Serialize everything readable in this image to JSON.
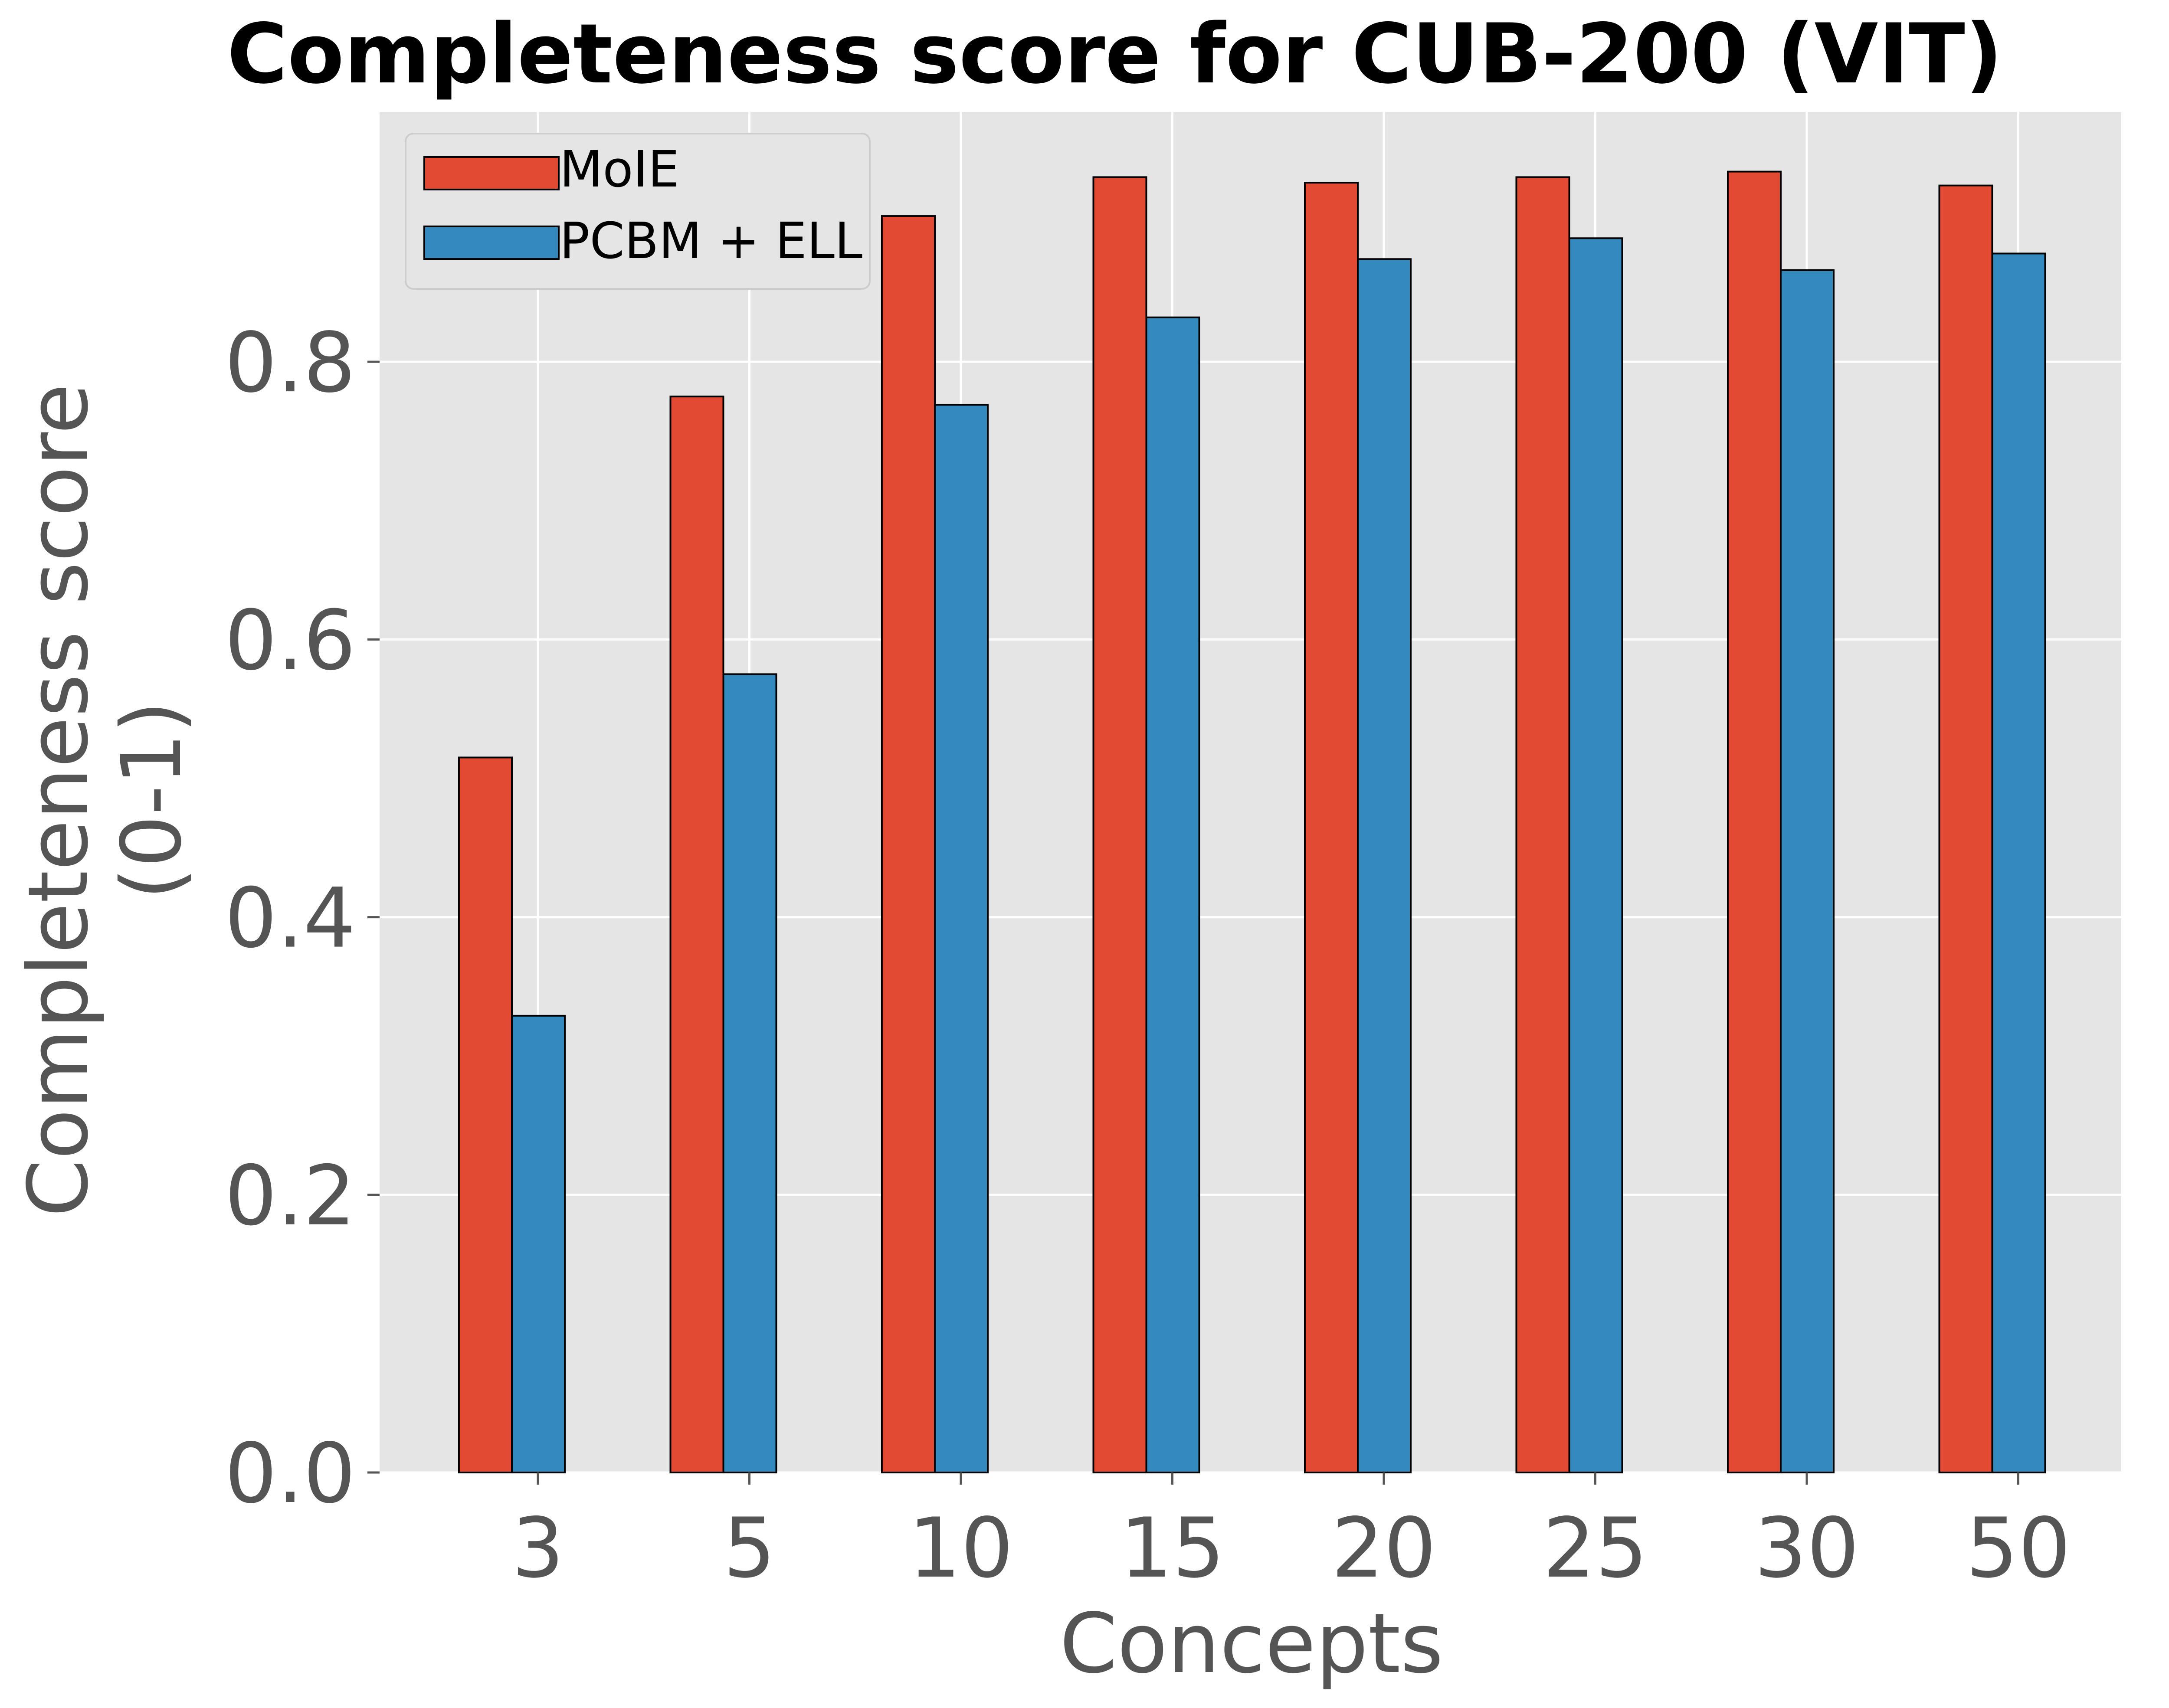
{
  "chart_data": {
    "type": "bar",
    "title": "Completeness score for CUB-200 (VIT)",
    "xlabel": "Concepts",
    "ylabel_line1": "Completeness score",
    "ylabel_line2": "(0-1)",
    "categories": [
      "3",
      "5",
      "10",
      "15",
      "20",
      "25",
      "30",
      "50"
    ],
    "series": [
      {
        "name": "MoIE",
        "values": [
          0.515,
          0.775,
          0.905,
          0.933,
          0.929,
          0.933,
          0.937,
          0.927
        ],
        "color": "#E24A33"
      },
      {
        "name": "PCBM + ELL",
        "values": [
          0.329,
          0.575,
          0.769,
          0.832,
          0.874,
          0.889,
          0.866,
          0.878
        ],
        "color": "#348ABD"
      }
    ],
    "ylim": [
      0,
      0.98
    ],
    "yticks": [
      "0.0",
      "0.2",
      "0.4",
      "0.6",
      "0.8"
    ],
    "ytick_values": [
      0.0,
      0.2,
      0.4,
      0.6,
      0.8
    ],
    "grid": true,
    "legend_position": "top-left",
    "plot_background": "#E5E5E5",
    "grid_color": "#FFFFFF"
  }
}
